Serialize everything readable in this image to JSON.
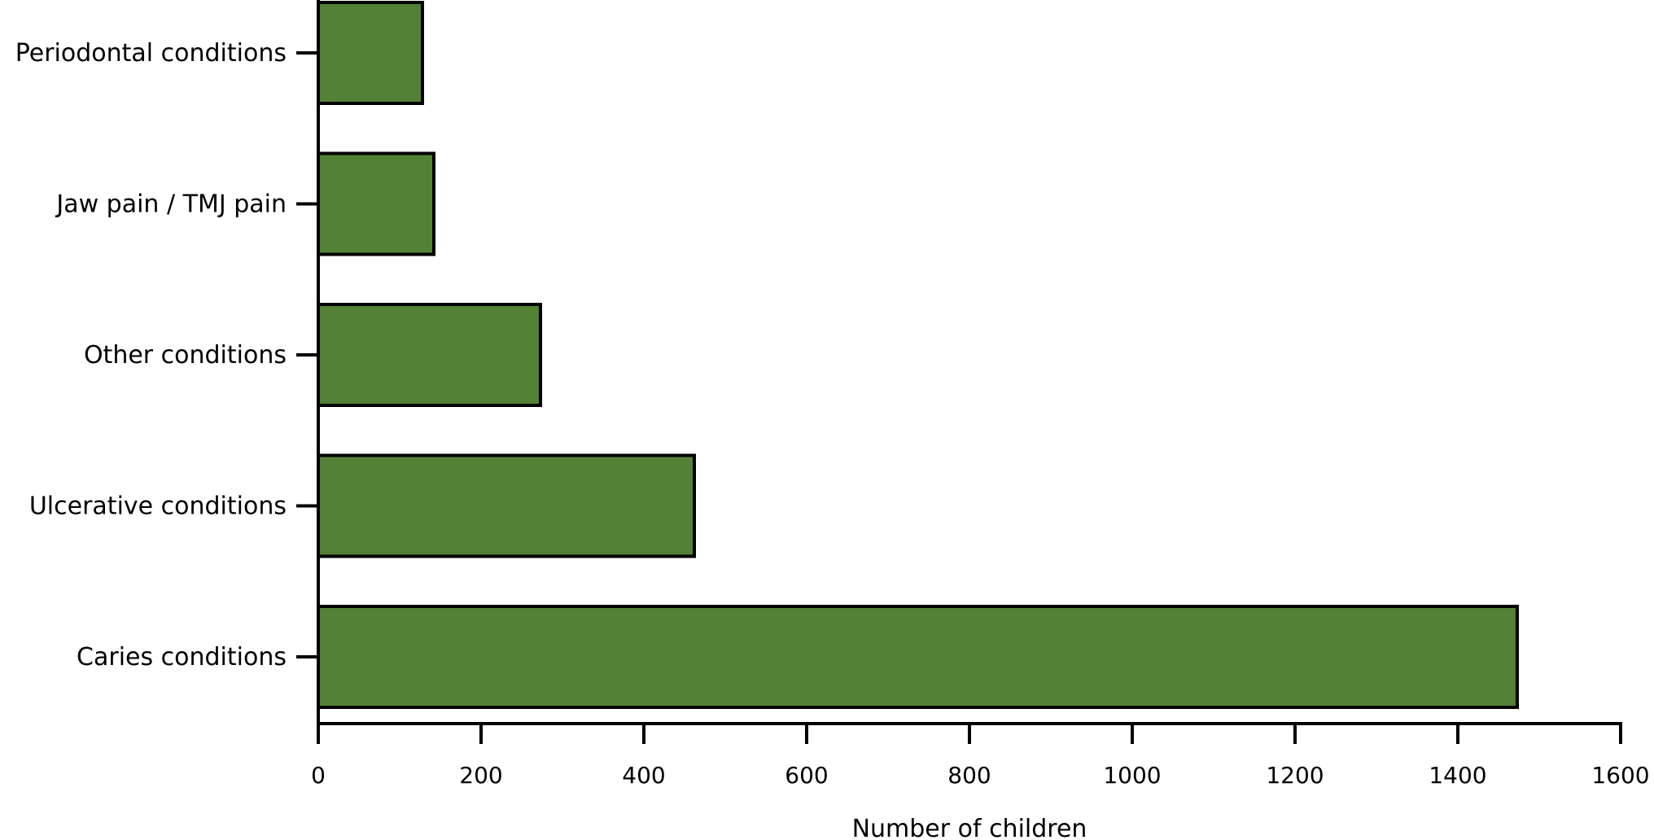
{
  "chart_data": {
    "type": "bar",
    "orientation": "horizontal",
    "categories": [
      "Periodontal conditions",
      "Jaw pain / TMJ pain",
      "Other conditions",
      "Ulcerative conditions",
      "Caries conditions"
    ],
    "values": [
      128,
      142,
      273,
      462,
      1473
    ],
    "xlabel": "Number of children",
    "ylabel": "",
    "xlim": [
      0,
      1600
    ],
    "xticks": [
      "0",
      "200",
      "400",
      "600",
      "800",
      "1000",
      "1200",
      "1400",
      "1600"
    ],
    "bar_color": "#538135",
    "grid": false
  }
}
